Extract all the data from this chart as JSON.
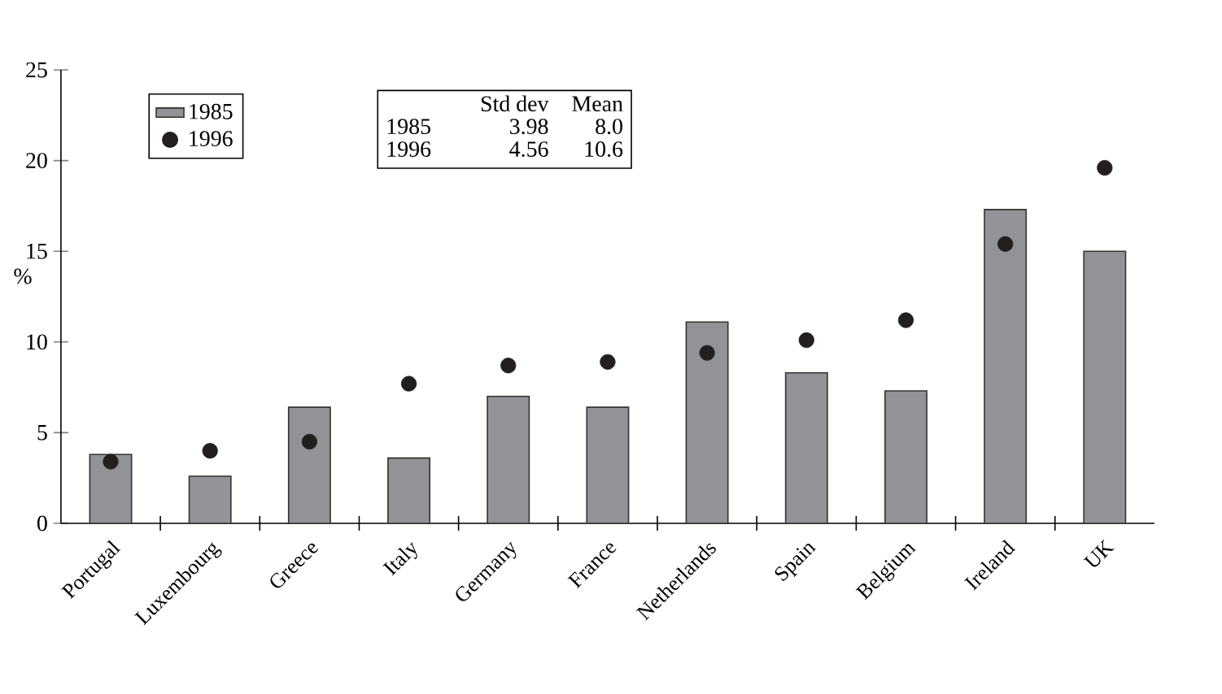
{
  "chart_data": {
    "type": "bar",
    "ylabel": "%",
    "categories": [
      "Portugal",
      "Luxembourg",
      "Greece",
      "Italy",
      "Germany",
      "France",
      "Netherlands",
      "Spain",
      "Belgium",
      "Ireland",
      "UK"
    ],
    "series": [
      {
        "name": "1985",
        "color": "#929396",
        "values": [
          3.8,
          2.6,
          6.4,
          3.6,
          7.0,
          6.4,
          11.1,
          8.3,
          7.3,
          17.3,
          15.0
        ]
      },
      {
        "name": "1996",
        "type": "scatter",
        "color": "#231f20",
        "values": [
          3.4,
          4.0,
          4.5,
          7.7,
          8.7,
          8.9,
          9.4,
          10.1,
          11.2,
          15.4,
          19.6
        ]
      }
    ],
    "ylim": [
      0,
      25
    ],
    "yticks": [
      0,
      5,
      10,
      15,
      20,
      25
    ],
    "grid": false,
    "marker": "circle",
    "legend": "top left",
    "annotations": [
      "Std dev",
      "Mean",
      "1985",
      "3.98",
      "8.0",
      "1996",
      "4.56",
      "10.6"
    ]
  }
}
